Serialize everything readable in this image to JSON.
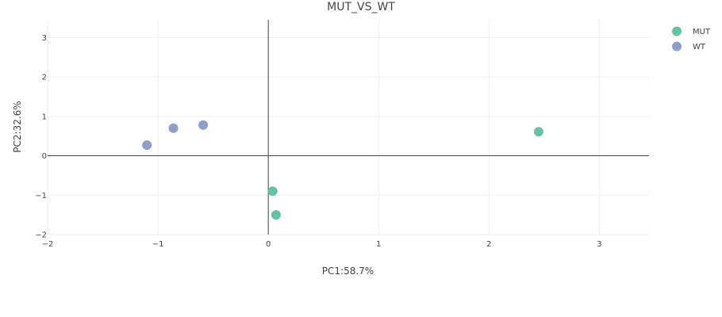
{
  "chart_data": {
    "type": "scatter",
    "title": "MUT_VS_WT",
    "xlabel": "PC1:58.7%",
    "ylabel": "PC2:32.6%",
    "xlim": [
      -2,
      3.45
    ],
    "ylim": [
      -2,
      3.45
    ],
    "xticks": [
      -2,
      -1,
      0,
      1,
      2,
      3
    ],
    "yticks": [
      -2,
      -1,
      0,
      1,
      2,
      3
    ],
    "xtick_labels": [
      "−2",
      "−1",
      "0",
      "1",
      "2",
      "3"
    ],
    "ytick_labels": [
      "−2",
      "−1",
      "0",
      "1",
      "2",
      "3"
    ],
    "grid": true,
    "legend_position": "top-right",
    "series": [
      {
        "name": "MUT",
        "color": "#66c2a5",
        "points": [
          {
            "x": 2.45,
            "y": 0.61
          },
          {
            "x": 0.04,
            "y": -0.9
          },
          {
            "x": 0.07,
            "y": -1.5
          }
        ]
      },
      {
        "name": "WT",
        "color": "#8da0cb",
        "points": [
          {
            "x": -1.1,
            "y": 0.27
          },
          {
            "x": -0.86,
            "y": 0.7
          },
          {
            "x": -0.59,
            "y": 0.78
          }
        ]
      }
    ]
  }
}
